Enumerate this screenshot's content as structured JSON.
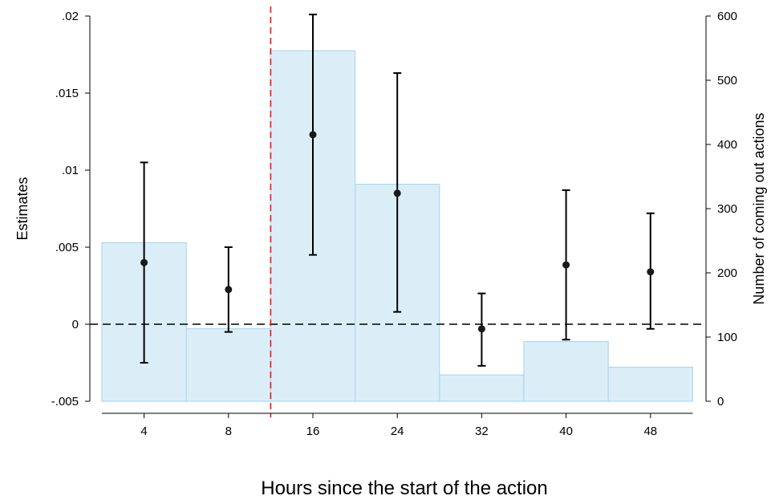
{
  "chart_data": {
    "type": "bar",
    "xlabel": "Hours since the start of the action",
    "ylabel_left": "Estimates",
    "ylabel_right": "Number of coming out actions",
    "x_ticks": [
      "4",
      "8",
      "16",
      "24",
      "32",
      "40",
      "48"
    ],
    "y_left_ticks": [
      ".02",
      ".015",
      ".01",
      ".005",
      "0",
      "-.005"
    ],
    "y_left_tick_values": [
      0.02,
      0.015,
      0.01,
      0.005,
      0,
      -0.005
    ],
    "y_left_lim": [
      -0.005,
      0.02
    ],
    "y_right_ticks": [
      "600",
      "500",
      "400",
      "300",
      "200",
      "100",
      "0"
    ],
    "y_right_tick_values": [
      600,
      500,
      400,
      300,
      200,
      100,
      0
    ],
    "y_right_lim": [
      0,
      600
    ],
    "bars": {
      "name": "Number of coming out actions",
      "values": [
        247,
        113,
        546,
        338,
        41,
        93,
        53
      ],
      "color": "#dbeef8",
      "edge_color": "#aed8ee"
    },
    "estimates": {
      "name": "Estimates",
      "points": [
        {
          "x": "4",
          "y": 0.004,
          "ci_low": -0.0025,
          "ci_high": 0.0105
        },
        {
          "x": "8",
          "y": 0.00225,
          "ci_low": -0.0005,
          "ci_high": 0.005
        },
        {
          "x": "16",
          "y": 0.0123,
          "ci_low": 0.0045,
          "ci_high": 0.0201
        },
        {
          "x": "24",
          "y": 0.0085,
          "ci_low": 0.0008,
          "ci_high": 0.0163
        },
        {
          "x": "32",
          "y": -0.0003,
          "ci_low": -0.0027,
          "ci_high": 0.002
        },
        {
          "x": "40",
          "y": 0.00385,
          "ci_low": -0.001,
          "ci_high": 0.0087
        },
        {
          "x": "48",
          "y": 0.0034,
          "ci_low": -0.0003,
          "ci_high": 0.0072
        }
      ],
      "color": "#000000"
    },
    "reference_lines": [
      {
        "axis": "y_left",
        "value": 0,
        "style": "dashed",
        "color": "#000000"
      },
      {
        "axis": "x",
        "between": [
          "8",
          "16"
        ],
        "style": "dashed",
        "color": "#e8161a"
      }
    ],
    "grid": false,
    "legend": "none"
  }
}
